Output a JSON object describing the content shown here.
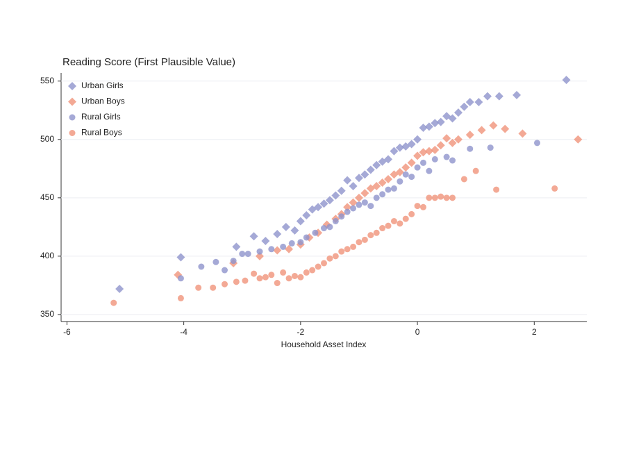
{
  "chart_data": {
    "type": "scatter",
    "title": "Reading Score (First Plausible Value)",
    "x_label": "Household Asset Index",
    "xlim": [
      -6.1,
      2.9
    ],
    "ylim": [
      344,
      557
    ],
    "xticks": [
      -6,
      -4,
      -2,
      0,
      2
    ],
    "yticks": [
      350,
      400,
      450,
      500,
      550
    ],
    "grid": true,
    "legend": "upper left",
    "series": [
      {
        "name": "Urban Girls",
        "color": "#8f94cc",
        "marker": "diamond",
        "x": [
          -5.1,
          -4.05,
          -3.1,
          -2.8,
          -2.6,
          -2.4,
          -2.25,
          -2.1,
          -2.0,
          -1.9,
          -1.8,
          -1.7,
          -1.6,
          -1.5,
          -1.4,
          -1.3,
          -1.2,
          -1.1,
          -1.0,
          -0.9,
          -0.8,
          -0.7,
          -0.6,
          -0.5,
          -0.4,
          -0.3,
          -0.2,
          -0.1,
          0.0,
          0.1,
          0.2,
          0.3,
          0.4,
          0.5,
          0.6,
          0.7,
          0.8,
          0.9,
          1.05,
          1.2,
          1.4,
          1.7,
          2.55
        ],
        "values": [
          372,
          399,
          408,
          417,
          413,
          419,
          425,
          422,
          430,
          435,
          440,
          442,
          445,
          448,
          452,
          456,
          465,
          460,
          467,
          470,
          474,
          478,
          481,
          483,
          490,
          493,
          494,
          496,
          500,
          510,
          511,
          514,
          515,
          520,
          518,
          523,
          528,
          532,
          532,
          537,
          537,
          538,
          551
        ]
      },
      {
        "name": "Urban Boys",
        "color": "#f0947a",
        "marker": "diamond",
        "x": [
          -4.1,
          -3.15,
          -2.7,
          -2.4,
          -2.2,
          -2.0,
          -1.85,
          -1.7,
          -1.55,
          -1.4,
          -1.3,
          -1.2,
          -1.1,
          -1.0,
          -0.9,
          -0.8,
          -0.7,
          -0.6,
          -0.5,
          -0.4,
          -0.3,
          -0.2,
          -0.1,
          0.0,
          0.1,
          0.2,
          0.3,
          0.4,
          0.5,
          0.6,
          0.7,
          0.9,
          1.1,
          1.3,
          1.5,
          1.8,
          2.75
        ],
        "values": [
          384,
          394,
          400,
          405,
          406,
          410,
          416,
          420,
          427,
          432,
          436,
          442,
          446,
          450,
          454,
          458,
          460,
          463,
          466,
          470,
          472,
          476,
          480,
          486,
          489,
          490,
          491,
          495,
          501,
          497,
          500,
          504,
          508,
          512,
          509,
          505,
          500
        ]
      },
      {
        "name": "Rural Girls",
        "color": "#8f94cc",
        "marker": "circle",
        "x": [
          -4.05,
          -3.7,
          -3.45,
          -3.3,
          -3.15,
          -3.0,
          -2.9,
          -2.7,
          -2.5,
          -2.3,
          -2.15,
          -2.0,
          -1.9,
          -1.75,
          -1.6,
          -1.5,
          -1.4,
          -1.3,
          -1.2,
          -1.1,
          -1.0,
          -0.9,
          -0.8,
          -0.7,
          -0.6,
          -0.5,
          -0.4,
          -0.3,
          -0.2,
          -0.1,
          0.0,
          0.1,
          0.2,
          0.3,
          0.5,
          0.6,
          0.9,
          1.25,
          2.05
        ],
        "values": [
          381,
          391,
          395,
          388,
          396,
          402,
          402,
          404,
          406,
          408,
          411,
          412,
          416,
          420,
          424,
          425,
          430,
          434,
          438,
          441,
          444,
          446,
          443,
          450,
          453,
          457,
          458,
          464,
          470,
          468,
          476,
          480,
          473,
          483,
          485,
          482,
          492,
          493,
          497
        ]
      },
      {
        "name": "Rural Boys",
        "color": "#f0947a",
        "marker": "circle",
        "x": [
          -5.2,
          -4.05,
          -3.75,
          -3.5,
          -3.3,
          -3.1,
          -2.95,
          -2.8,
          -2.7,
          -2.6,
          -2.5,
          -2.4,
          -2.3,
          -2.2,
          -2.1,
          -2.0,
          -1.9,
          -1.8,
          -1.7,
          -1.6,
          -1.5,
          -1.4,
          -1.3,
          -1.2,
          -1.1,
          -1.0,
          -0.9,
          -0.8,
          -0.7,
          -0.6,
          -0.5,
          -0.4,
          -0.3,
          -0.2,
          -0.1,
          0.0,
          0.1,
          0.2,
          0.3,
          0.4,
          0.5,
          0.6,
          0.8,
          1.0,
          1.35,
          2.35
        ],
        "values": [
          360,
          364,
          373,
          373,
          376,
          378,
          379,
          385,
          381,
          382,
          384,
          377,
          386,
          381,
          383,
          382,
          386,
          388,
          391,
          394,
          398,
          400,
          404,
          406,
          408,
          412,
          414,
          418,
          420,
          424,
          426,
          430,
          428,
          432,
          436,
          443,
          442,
          450,
          450,
          451,
          450,
          450,
          466,
          473,
          457,
          458
        ]
      }
    ]
  }
}
